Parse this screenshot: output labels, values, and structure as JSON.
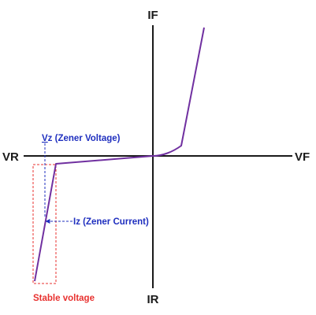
{
  "axes": {
    "if_label": "IF",
    "ir_label": "IR",
    "vr_label": "VR",
    "vf_label": "VF"
  },
  "annotations": {
    "vz": {
      "prefix": "V",
      "suffix": "z (Zener Voltage)"
    },
    "iz": "Iz (Zener Current)",
    "stable": "Stable voltage"
  },
  "colors": {
    "axis": "#1a1a1a",
    "curve": "#7030a0",
    "annotation_blue": "#1f2fbf",
    "stable_red": "#e8312f",
    "background": "#ffffff"
  }
}
